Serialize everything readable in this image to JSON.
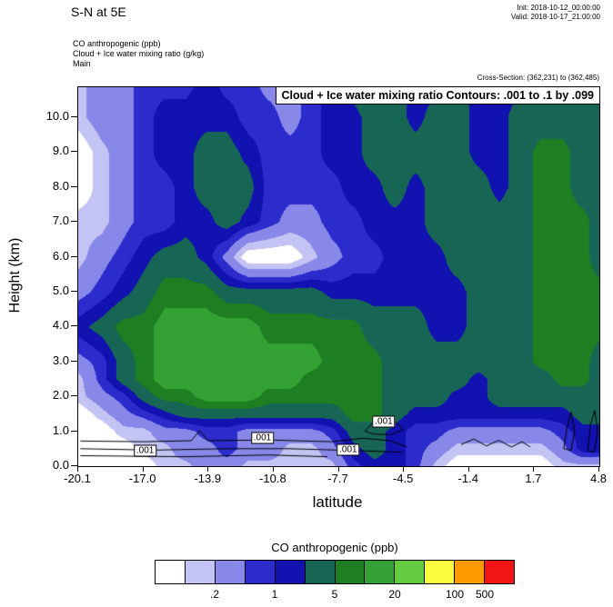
{
  "header": {
    "title": "S-N at 5E",
    "init": "Init: 2018-10-12_00:00:00",
    "valid": "Valid: 2018-10-17_21:00:00",
    "fields": {
      "field1": "CO anthropogenic  (ppb)",
      "field2": "Cloud + Ice water mixing ratio  (g/kg)",
      "field3": "Main"
    },
    "cross_section": "Cross-Section: (362,231) to (362,485)"
  },
  "plot": {
    "contour_box_label": "Cloud + Ice water mixing ratio Contours: .001 to .1 by .099",
    "ylabel": "Height (km)",
    "xlabel": "latitude",
    "yticks": [
      "0.0",
      "1.0",
      "2.0",
      "3.0",
      "4.0",
      "5.0",
      "6.0",
      "7.0",
      "8.0",
      "9.0",
      "10.0"
    ],
    "xticks": [
      "-20.1",
      "-17.0",
      "-13.9",
      "-10.8",
      "-7.7",
      "-4.5",
      "-1.4",
      "1.7",
      "4.8"
    ]
  },
  "colorbar": {
    "title": "CO anthropogenic  (ppb)",
    "colors": [
      "#ffffff",
      "#c4c4f4",
      "#8888e8",
      "#2c2ccc",
      "#1212b0",
      "#176655",
      "#1e7e22",
      "#33a133",
      "#62cb40",
      "#fdfd40",
      "#ff9b00",
      "#f31414"
    ],
    "levels": [
      0.1,
      0.2,
      0.5,
      1,
      2,
      5,
      10,
      20,
      50,
      100,
      500
    ],
    "ticks": [
      {
        "label": ".2",
        "edge": 2
      },
      {
        "label": "1",
        "edge": 4
      },
      {
        "label": "5",
        "edge": 6
      },
      {
        "label": "20",
        "edge": 8
      },
      {
        "label": "100",
        "edge": 10
      },
      {
        "label": "500",
        "edge": 11
      }
    ]
  },
  "chart_data": {
    "type": "heatmap",
    "xlabel": "latitude",
    "ylabel": "Height (km)",
    "units": "ppb",
    "x_range": [
      -20.1,
      4.8
    ],
    "y_range": [
      0,
      10.86
    ],
    "x": [
      -20.1,
      -19,
      -18,
      -17,
      -16,
      -15,
      -14,
      -13,
      -12,
      -11,
      -10,
      -9,
      -8,
      -7,
      -6,
      -5,
      -4,
      -3,
      -2,
      -1,
      0,
      1,
      2,
      3,
      4,
      4.8
    ],
    "y": [
      0,
      0.5,
      1,
      1.5,
      2,
      2.5,
      3,
      4,
      5,
      6,
      7,
      8,
      9,
      10,
      11
    ],
    "values_ppb": [
      [
        0.05,
        0.05,
        0.05,
        0.05,
        0.15,
        0.15,
        0.35,
        0.35,
        0.15,
        0.15,
        0.15,
        0.15,
        0.15,
        0.7,
        1.5,
        1.5,
        0.7,
        0.15,
        0.05,
        0.05,
        0.05,
        0.05,
        0.05,
        0.15,
        0.15,
        0.15
      ],
      [
        0.05,
        0.05,
        0.05,
        0.15,
        0.15,
        0.35,
        0.35,
        0.7,
        0.35,
        0.35,
        0.15,
        0.15,
        0.35,
        1.5,
        3,
        1.5,
        0.7,
        0.35,
        0.15,
        0.15,
        0.15,
        0.15,
        0.15,
        0.35,
        1.5,
        1.5
      ],
      [
        0.05,
        0.05,
        0.15,
        0.15,
        0.35,
        0.35,
        0.7,
        0.7,
        0.35,
        0.35,
        0.35,
        0.35,
        0.7,
        3,
        3,
        1.5,
        0.7,
        0.7,
        0.35,
        0.35,
        0.35,
        0.35,
        0.35,
        0.7,
        1.5,
        1.5
      ],
      [
        0.05,
        0.15,
        0.35,
        0.7,
        1.5,
        3,
        3,
        3,
        3,
        3,
        3,
        3,
        3,
        7,
        7,
        3,
        1.5,
        1.5,
        1.5,
        1.5,
        1.5,
        1.5,
        1.5,
        1.5,
        3,
        3
      ],
      [
        0.15,
        0.35,
        0.7,
        3,
        7,
        7,
        15,
        15,
        15,
        7,
        7,
        7,
        7,
        7,
        7,
        3,
        3,
        3,
        1.5,
        1.5,
        3,
        3,
        3,
        3,
        3,
        3
      ],
      [
        0.15,
        0.7,
        3,
        7,
        15,
        15,
        15,
        15,
        15,
        15,
        15,
        7,
        7,
        7,
        7,
        3,
        3,
        3,
        3,
        1.5,
        3,
        3,
        3,
        7,
        7,
        3
      ],
      [
        0.35,
        0.7,
        3,
        7,
        15,
        15,
        15,
        15,
        15,
        15,
        15,
        15,
        7,
        7,
        7,
        3,
        3,
        3,
        3,
        3,
        3,
        3,
        7,
        7,
        7,
        3
      ],
      [
        1.5,
        3,
        7,
        7,
        15,
        15,
        15,
        15,
        15,
        7,
        7,
        7,
        7,
        7,
        3,
        3,
        3,
        1.5,
        1.5,
        3,
        3,
        3,
        7,
        7,
        7,
        7
      ],
      [
        0.35,
        0.7,
        1.5,
        3,
        7,
        7,
        7,
        3,
        3,
        3,
        3,
        3,
        1.5,
        1.5,
        1.5,
        1.5,
        1.5,
        1.5,
        1.5,
        3,
        3,
        3,
        7,
        7,
        7,
        7
      ],
      [
        0.15,
        0.35,
        0.7,
        1.5,
        3,
        3,
        1.5,
        0.35,
        0.05,
        0.05,
        0.05,
        0.15,
        0.35,
        0.7,
        0.7,
        1.5,
        1.5,
        1.5,
        3,
        3,
        3,
        3,
        7,
        7,
        7,
        3
      ],
      [
        0.15,
        0.15,
        0.35,
        0.7,
        0.7,
        1.5,
        1.5,
        3,
        1.5,
        0.7,
        0.35,
        0.35,
        0.7,
        0.7,
        1.5,
        1.5,
        1.5,
        3,
        3,
        3,
        3,
        3,
        7,
        7,
        7,
        3
      ],
      [
        0.05,
        0.15,
        0.35,
        0.7,
        0.7,
        1.5,
        3,
        3,
        3,
        0.7,
        0.7,
        0.7,
        0.7,
        1.5,
        1.5,
        3,
        1.5,
        3,
        3,
        3,
        1.5,
        3,
        7,
        7,
        3,
        3
      ],
      [
        0.05,
        0.15,
        0.35,
        0.7,
        1.5,
        1.5,
        3,
        3,
        1.5,
        0.7,
        0.7,
        0.7,
        1.5,
        1.5,
        3,
        3,
        3,
        3,
        3,
        1.5,
        1.5,
        3,
        7,
        7,
        3,
        3
      ],
      [
        0.15,
        0.35,
        0.35,
        0.7,
        1.5,
        1.5,
        1.5,
        1.5,
        0.7,
        0.7,
        0.35,
        0.7,
        1.5,
        1.5,
        3,
        3,
        1.5,
        3,
        3,
        1.5,
        1.5,
        3,
        3,
        3,
        3,
        3
      ],
      [
        0.15,
        0.35,
        0.35,
        0.7,
        0.7,
        0.7,
        1.5,
        0.7,
        0.7,
        0.35,
        0.35,
        0.7,
        1.5,
        3,
        3,
        3,
        1.5,
        1.5,
        3,
        1.5,
        1.5,
        1.5,
        3,
        3,
        3,
        3
      ]
    ],
    "contour_field": {
      "name": "Cloud + Ice water mixing ratio",
      "units": "g/kg",
      "levels": "0.001 to 0.1 by 0.099"
    },
    "contour_labels": [
      {
        "text": ".001",
        "lat": -16.9,
        "height": 0.45
      },
      {
        "text": ".001",
        "lat": -11.3,
        "height": 0.8
      },
      {
        "text": ".001",
        "lat": -7.2,
        "height": 0.47
      },
      {
        "text": ".001",
        "lat": -5.5,
        "height": 1.28
      }
    ],
    "contour_lines": [
      {
        "closed": false,
        "points": [
          [
            -20.0,
            0.72
          ],
          [
            -17,
            0.7
          ],
          [
            -14.7,
            0.73
          ],
          [
            -14.3,
            1.02
          ],
          [
            -13.9,
            0.73
          ],
          [
            -11,
            0.75
          ],
          [
            -8,
            0.7
          ],
          [
            -6.5,
            0.8
          ],
          [
            -5.2,
            0.73
          ],
          [
            -4.4,
            0.55
          ]
        ]
      },
      {
        "closed": false,
        "points": [
          [
            -20.0,
            0.5
          ],
          [
            -16.5,
            0.46
          ],
          [
            -13,
            0.5
          ],
          [
            -10,
            0.5
          ],
          [
            -7,
            0.45
          ],
          [
            -4.6,
            0.4
          ]
        ]
      },
      {
        "closed": false,
        "points": [
          [
            -20.0,
            0.3
          ],
          [
            -15,
            0.27
          ],
          [
            -11,
            0.32
          ],
          [
            -8.2,
            0.27
          ]
        ]
      },
      {
        "closed": true,
        "points": [
          [
            -6.4,
            1.0
          ],
          [
            -5.9,
            1.33
          ],
          [
            -5.0,
            1.3
          ],
          [
            -4.55,
            1.05
          ],
          [
            -5.2,
            0.9
          ],
          [
            -6.0,
            0.92
          ]
        ]
      },
      {
        "closed": false,
        "points": [
          [
            -1.8,
            0.62
          ],
          [
            -1.2,
            0.78
          ],
          [
            -0.6,
            0.58
          ],
          [
            0,
            0.74
          ],
          [
            0.6,
            0.55
          ],
          [
            1.1,
            0.7
          ],
          [
            1.5,
            0.55
          ]
        ]
      },
      {
        "closed": true,
        "points": [
          [
            3.1,
            0.5
          ],
          [
            3.25,
            1.1
          ],
          [
            3.45,
            1.55
          ],
          [
            3.62,
            1.0
          ],
          [
            3.45,
            0.45
          ]
        ]
      },
      {
        "closed": true,
        "points": [
          [
            4.25,
            0.45
          ],
          [
            4.38,
            1.2
          ],
          [
            4.58,
            1.6
          ],
          [
            4.72,
            1.0
          ],
          [
            4.55,
            0.4
          ]
        ]
      }
    ]
  }
}
